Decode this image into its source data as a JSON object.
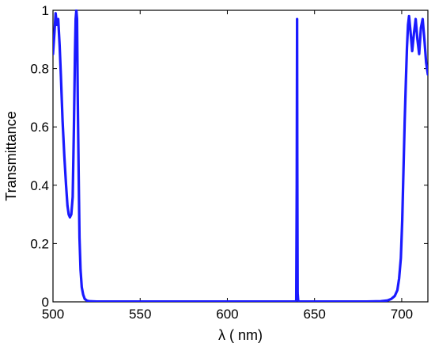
{
  "chart_data": {
    "type": "line",
    "title": "",
    "xlabel": "λ ( nm)",
    "ylabel": "Transmittance",
    "xlim": [
      500,
      715
    ],
    "ylim": [
      0,
      1
    ],
    "x_ticks": [
      500,
      550,
      600,
      650,
      700
    ],
    "x_tick_labels": [
      "500",
      "550",
      "600",
      "650",
      "700"
    ],
    "y_ticks": [
      0,
      0.2,
      0.4,
      0.6,
      0.8,
      1
    ],
    "y_tick_labels": [
      "0",
      "0.2",
      "0.4",
      "0.6",
      "0.8",
      "1"
    ],
    "grid": false,
    "legend": "none",
    "line_color": "#1a1aff",
    "series": [
      {
        "x": [
          500,
          500.8,
          501.5,
          502.2,
          503,
          503.8,
          504.5,
          505.5,
          506.5,
          507.5,
          508.3,
          509,
          509.7,
          510.5,
          511.3,
          512,
          512.6,
          513,
          513.4,
          513.8,
          514.2,
          514.7,
          515.2,
          515.8,
          516.5,
          517.3,
          518.2,
          519.5,
          521,
          525,
          550,
          600,
          630,
          639,
          639.5,
          639.8,
          640,
          640.1,
          640.3,
          640.6,
          641,
          642,
          660,
          680,
          688,
          692,
          694,
          696,
          697.5,
          698.5,
          699.5,
          700.3,
          701,
          701.7,
          702.4,
          703,
          703.6,
          704.2,
          705,
          706,
          707,
          708,
          709,
          710,
          711,
          712,
          713,
          714,
          715
        ],
        "y": [
          0.85,
          0.92,
          0.99,
          0.95,
          0.97,
          0.88,
          0.78,
          0.62,
          0.5,
          0.4,
          0.33,
          0.3,
          0.29,
          0.3,
          0.36,
          0.6,
          0.85,
          0.97,
          1.0,
          0.97,
          0.7,
          0.45,
          0.22,
          0.11,
          0.05,
          0.025,
          0.01,
          0.004,
          0.002,
          0.001,
          0.001,
          0.001,
          0.001,
          0.001,
          0.005,
          0.4,
          0.97,
          0.5,
          0.03,
          0.005,
          0.001,
          0.001,
          0.001,
          0.001,
          0.002,
          0.005,
          0.01,
          0.02,
          0.04,
          0.08,
          0.15,
          0.28,
          0.45,
          0.62,
          0.76,
          0.87,
          0.95,
          0.98,
          0.93,
          0.86,
          0.92,
          0.97,
          0.9,
          0.85,
          0.94,
          0.97,
          0.9,
          0.82,
          0.78
        ]
      }
    ]
  }
}
